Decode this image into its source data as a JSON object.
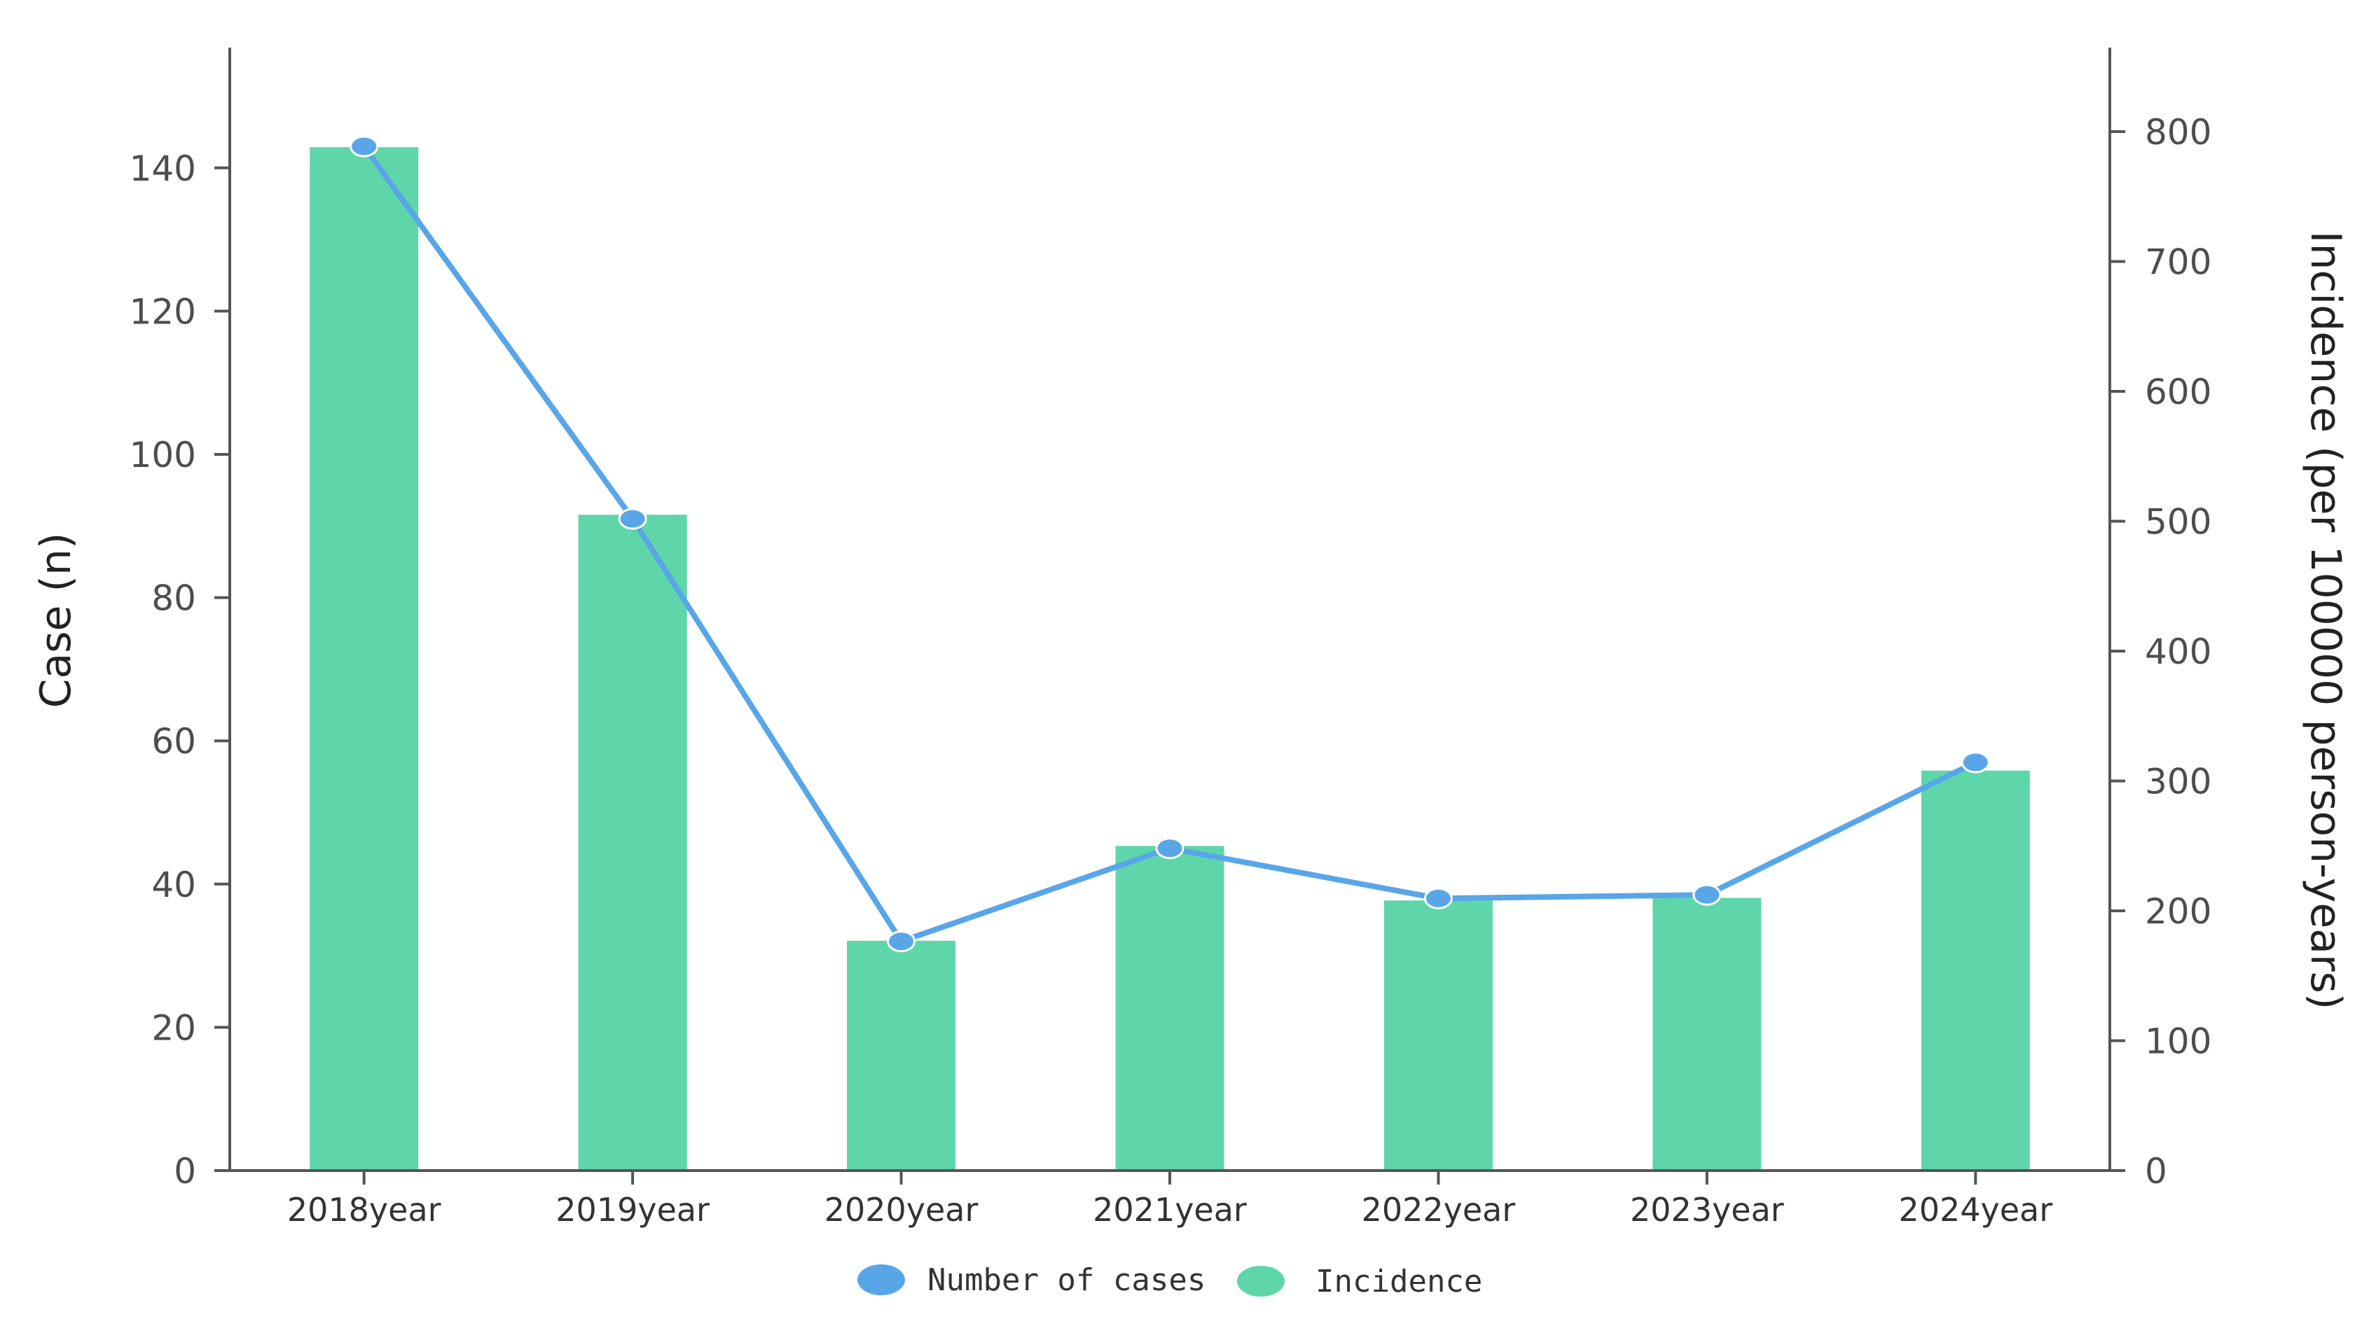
{
  "chart_data": {
    "type": "bar",
    "categories": [
      "2018year",
      "2019year",
      "2020year",
      "2021year",
      "2022year",
      "2023year",
      "2024year"
    ],
    "series": [
      {
        "name": "Incidence",
        "type": "bar",
        "axis": "right",
        "color": "#5fd6a9",
        "values": [
          788,
          505,
          177,
          250,
          208,
          210,
          308
        ]
      },
      {
        "name": "Number of cases",
        "type": "line",
        "axis": "left",
        "color": "#58a6e8",
        "values": [
          143,
          91,
          32,
          45,
          38,
          38.5,
          57
        ]
      }
    ],
    "left_axis": {
      "label": "Case (n)",
      "ylim": [
        0,
        155
      ],
      "ticks": [
        "0",
        "20",
        "40",
        "60",
        "80",
        "100",
        "120",
        "140"
      ]
    },
    "right_axis": {
      "label": "Incidence (per 100000 person-years)",
      "ylim": [
        0,
        800
      ],
      "ticks": [
        "0",
        "100",
        "200",
        "300",
        "400",
        "500",
        "600",
        "700",
        "800"
      ]
    },
    "legend_position": "bottom-center",
    "grid": false
  }
}
